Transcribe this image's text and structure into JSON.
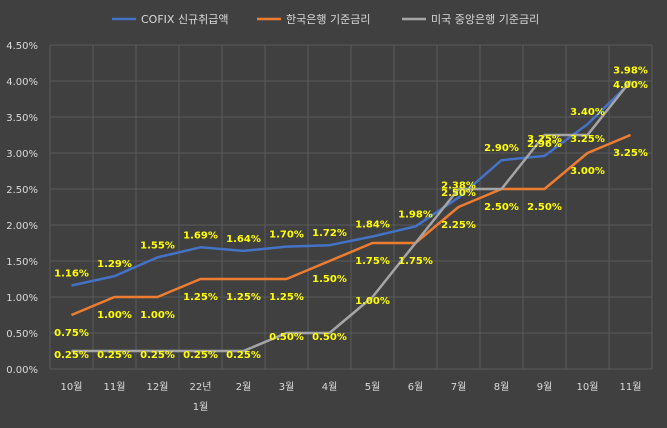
{
  "chart_data": {
    "type": "line",
    "title": "",
    "xlabel": "",
    "ylabel": "",
    "ylim": [
      0,
      4.5
    ],
    "y_tick_labels": [
      "0.00%",
      "0.50%",
      "1.00%",
      "1.50%",
      "2.00%",
      "2.50%",
      "3.00%",
      "3.50%",
      "4.00%",
      "4.50%"
    ],
    "categories": [
      "10월",
      "11월",
      "12월",
      "22년\n1월",
      "2월",
      "3월",
      "4월",
      "5월",
      "6월",
      "7월",
      "8월",
      "9월",
      "10월",
      "11월"
    ],
    "grid": true,
    "legend_position": "top",
    "series": [
      {
        "name": "COFIX 신규취급액",
        "color": "#4472c4",
        "values": [
          1.16,
          1.29,
          1.55,
          1.69,
          1.64,
          1.7,
          1.72,
          1.84,
          1.98,
          2.38,
          2.9,
          2.96,
          3.4,
          3.98
        ],
        "labels": [
          "1.16%",
          "1.29%",
          "1.55%",
          "1.69%",
          "1.64%",
          "1.70%",
          "1.72%",
          "1.84%",
          "1.98%",
          "2.38%",
          "2.90%",
          "2.96%",
          "3.40%",
          "3.98%"
        ]
      },
      {
        "name": "한국은행 기준금리",
        "color": "#ed7d31",
        "values": [
          0.75,
          1.0,
          1.0,
          1.25,
          1.25,
          1.25,
          1.5,
          1.75,
          1.75,
          2.25,
          2.5,
          2.5,
          3.0,
          3.25
        ],
        "labels": [
          "0.75%",
          "1.00%",
          "1.00%",
          "1.25%",
          "1.25%",
          "1.25%",
          "1.50%",
          "1.75%",
          "1.75%",
          "2.25%",
          "2.50%",
          "2.50%",
          "3.00%",
          "3.25%"
        ]
      },
      {
        "name": "미국 중앙은행 기준금리",
        "color": "#a5a5a5",
        "values": [
          0.25,
          0.25,
          0.25,
          0.25,
          0.25,
          0.5,
          0.5,
          1.0,
          1.75,
          2.5,
          2.5,
          3.25,
          3.25,
          4.0
        ],
        "labels": [
          "0.25%",
          "0.25%",
          "0.25%",
          "0.25%",
          "0.25%",
          "0.50%",
          "0.50%",
          "1.00%",
          "",
          "2.50%",
          "",
          "3.25%",
          "3.25%",
          "4.00%"
        ]
      }
    ]
  }
}
